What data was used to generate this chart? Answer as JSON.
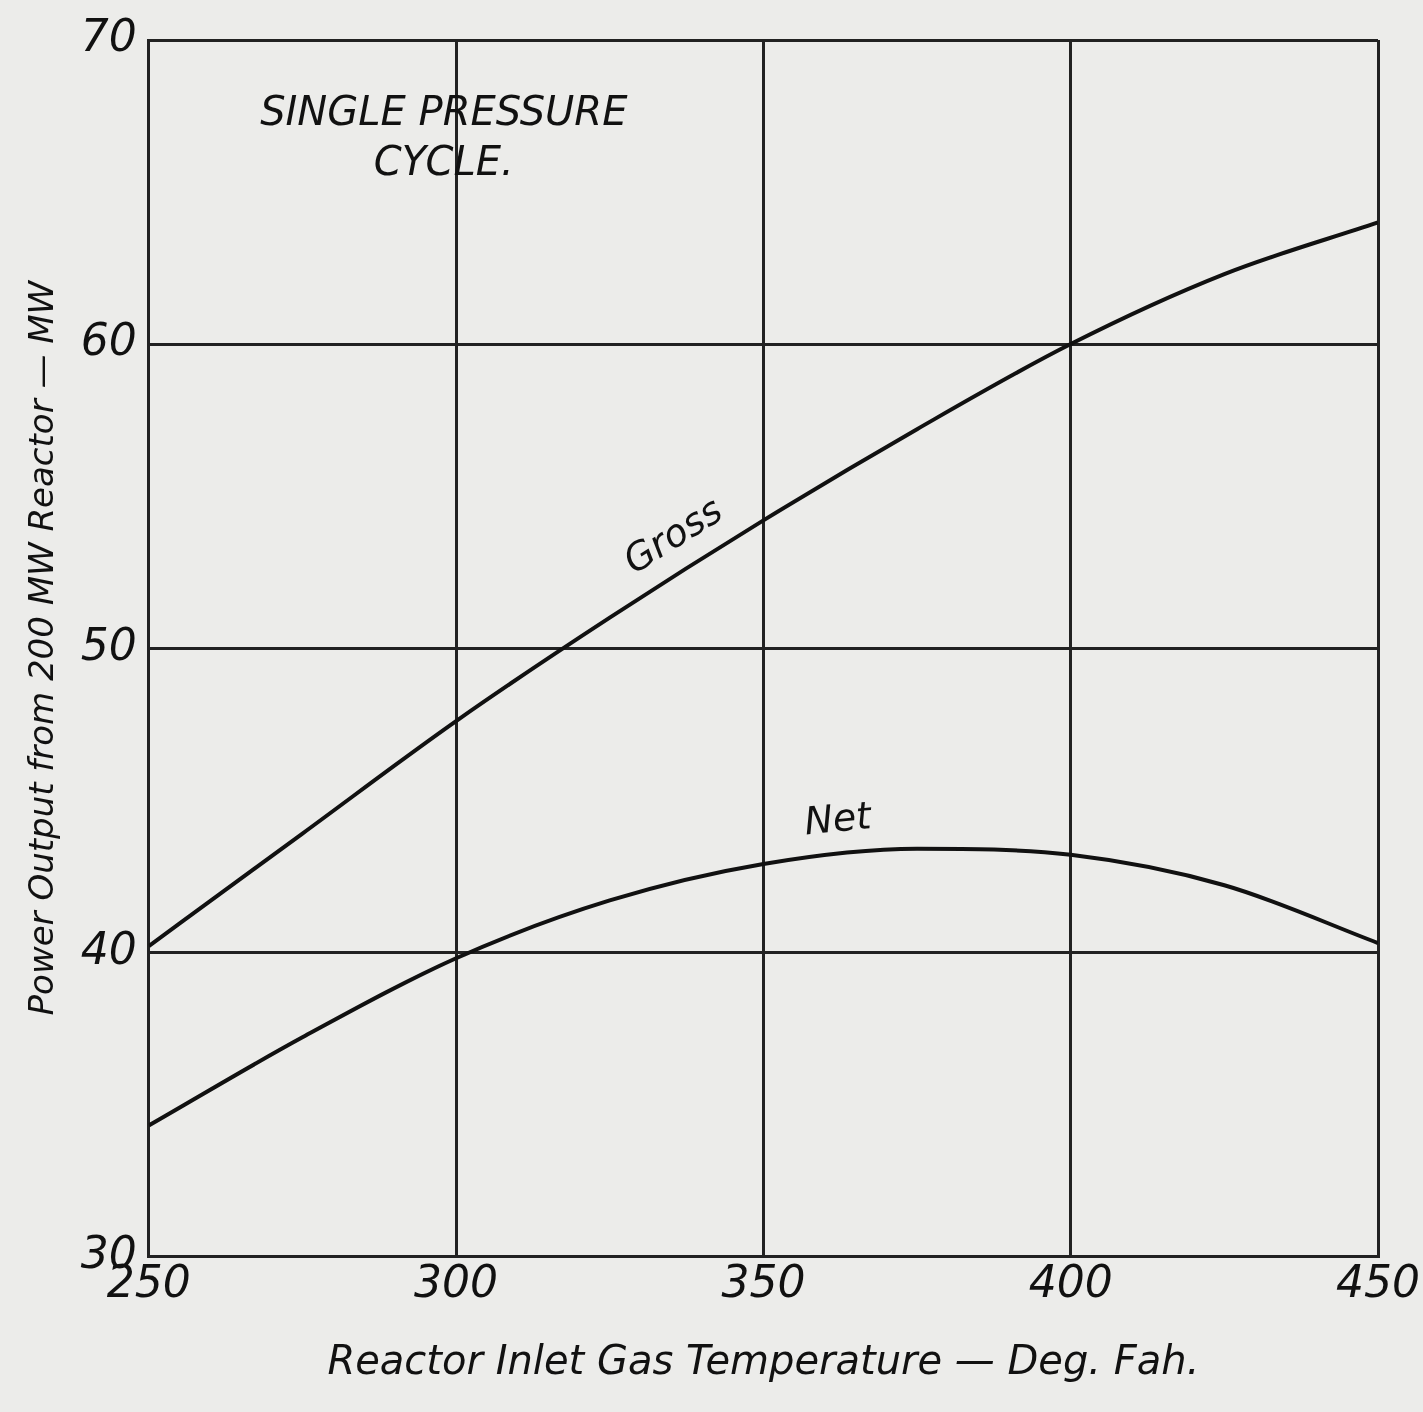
{
  "chart_data": {
    "type": "line",
    "title": "SINGLE PRESSURE CYCLE.",
    "xlabel": "Reactor Inlet Gas Temperature — Deg. Fah.",
    "ylabel": "Power Output from 200 MW Reactor — MW",
    "x": [
      250,
      275,
      300,
      325,
      350,
      375,
      400,
      425,
      450
    ],
    "series": [
      {
        "name": "Gross",
        "color": "#111111",
        "values": [
          40.2,
          43.9,
          47.6,
          51.0,
          54.2,
          57.2,
          60.0,
          62.3,
          64.0
        ]
      },
      {
        "name": "Net",
        "color": "#111111",
        "values": [
          34.3,
          37.2,
          39.8,
          41.7,
          42.9,
          43.4,
          43.2,
          42.2,
          40.3
        ]
      }
    ],
    "xlim": [
      250,
      450
    ],
    "xticks": [
      250,
      300,
      350,
      400,
      450
    ],
    "ylim": [
      30,
      70
    ],
    "yticks": [
      30,
      40,
      50,
      60,
      70
    ],
    "grid": true,
    "legend": false,
    "marker": "none",
    "line_style": "solid"
  }
}
